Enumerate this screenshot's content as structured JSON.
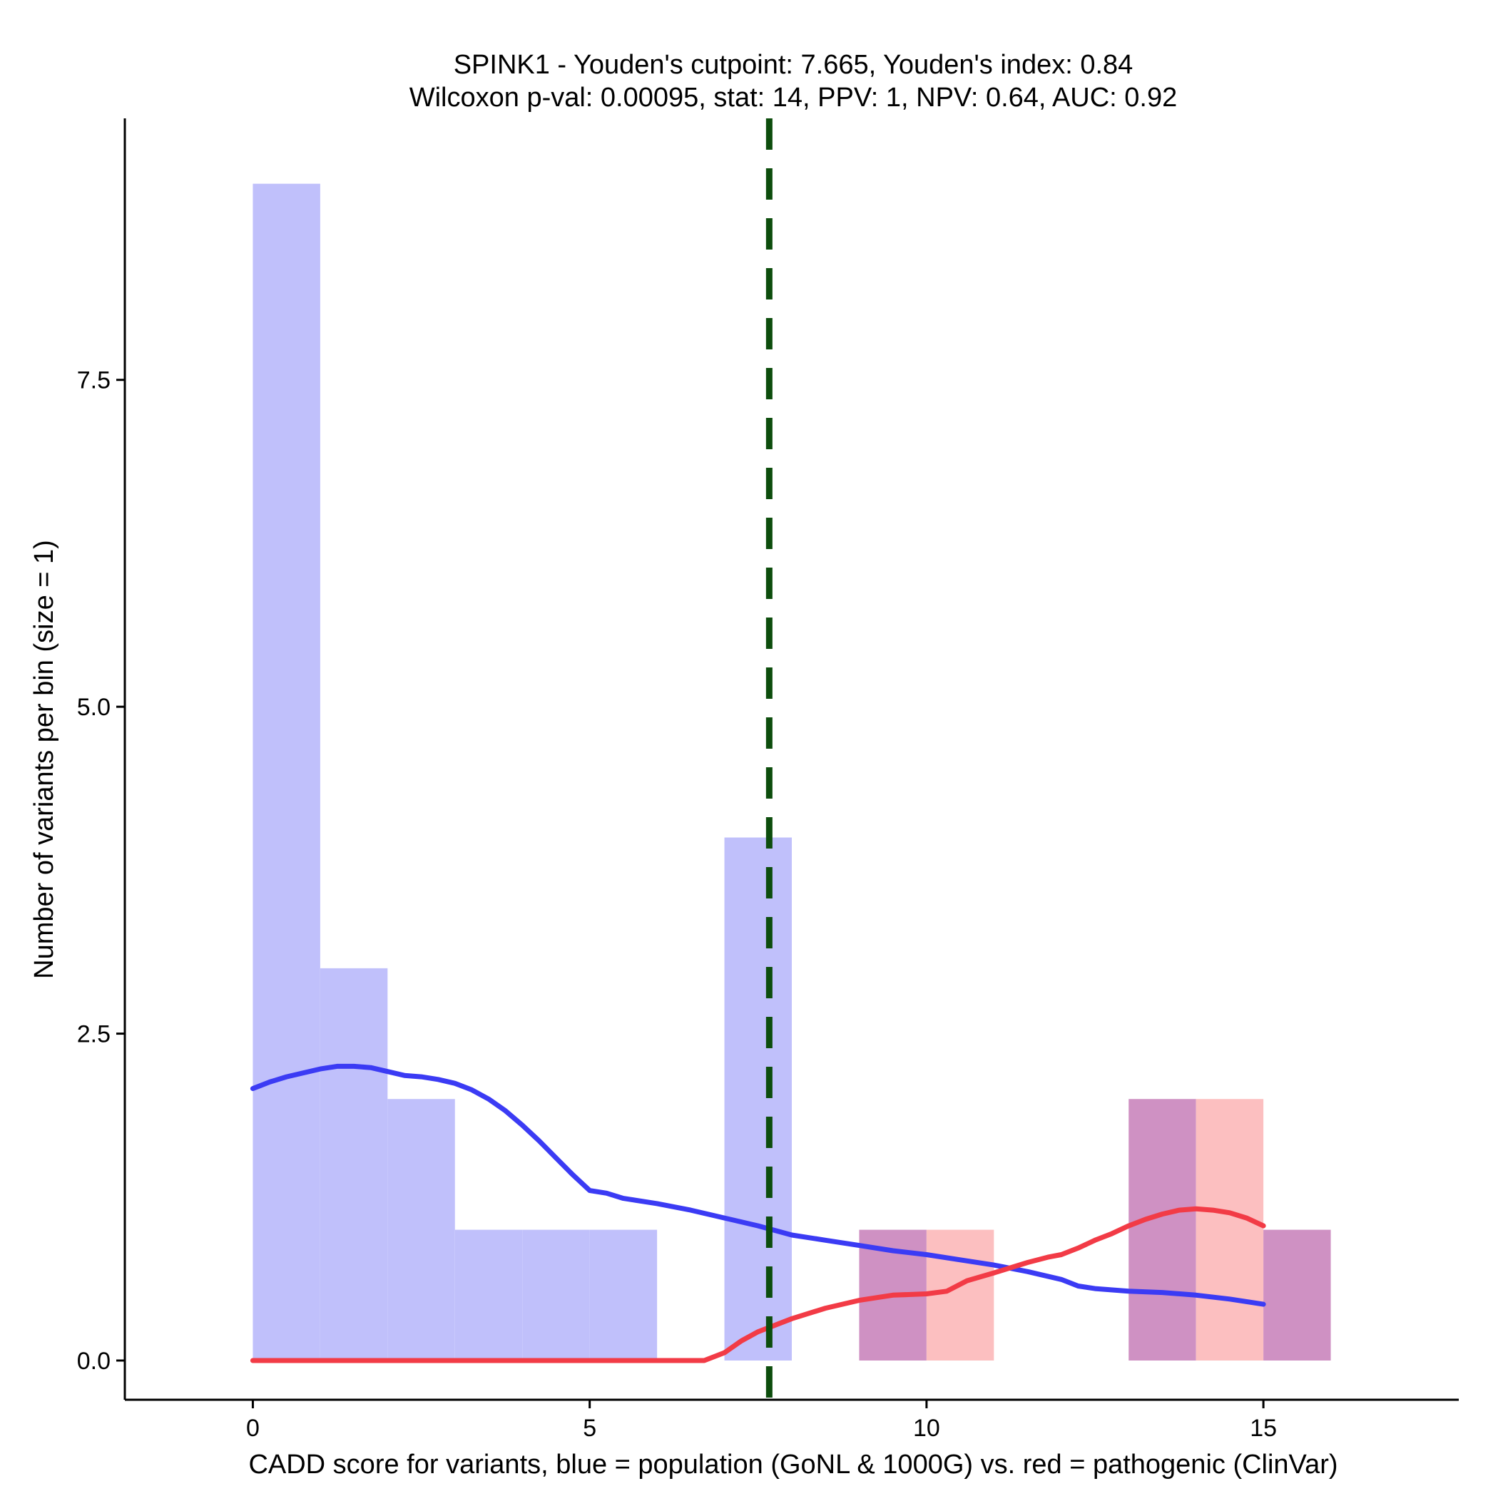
{
  "chart_data": {
    "type": "bar",
    "title_line1": "SPINK1 - Youden's cutpoint: 7.665, Youden's index: 0.84",
    "title_line2": "Wilcoxon p-val: 0.00095, stat: 14, PPV: 1, NPV: 0.64, AUC: 0.92",
    "xlabel": "CADD score for variants, blue = population (GoNL & 1000G) vs. red = pathogenic (ClinVar)",
    "ylabel": "Number of variants per bin (size = 1)",
    "xlim": [
      -1.9,
      17.9
    ],
    "ylim": [
      -0.3,
      9.5
    ],
    "x_ticks": [
      {
        "value": 0,
        "label": "0"
      },
      {
        "value": 5,
        "label": "5"
      },
      {
        "value": 10,
        "label": "10"
      },
      {
        "value": 15,
        "label": "15"
      }
    ],
    "y_ticks": [
      {
        "value": 0,
        "label": "0.0"
      },
      {
        "value": 2.5,
        "label": "2.5"
      },
      {
        "value": 5,
        "label": "5.0"
      },
      {
        "value": 7.5,
        "label": "7.5"
      }
    ],
    "bin_width": 1,
    "cutpoint": 7.665,
    "colors": {
      "population": "#c0c0fb",
      "pathogenic": "#fcbfc0",
      "overlap": "#cf91c3",
      "population_line": "#3b3bf4",
      "pathogenic_line": "#f23b46",
      "cutpoint": "#0d4d0d"
    },
    "series": [
      {
        "name": "population",
        "bins": [
          {
            "start": 0,
            "count": 9
          },
          {
            "start": 1,
            "count": 3
          },
          {
            "start": 2,
            "count": 2
          },
          {
            "start": 3,
            "count": 1
          },
          {
            "start": 4,
            "count": 1
          },
          {
            "start": 5,
            "count": 1
          },
          {
            "start": 7,
            "count": 4
          },
          {
            "start": 9,
            "count": 1
          },
          {
            "start": 13,
            "count": 2
          },
          {
            "start": 15,
            "count": 1
          }
        ],
        "density": [
          [
            0,
            2.08
          ],
          [
            0.25,
            2.13
          ],
          [
            0.5,
            2.17
          ],
          [
            0.75,
            2.2
          ],
          [
            1.0,
            2.23
          ],
          [
            1.25,
            2.25
          ],
          [
            1.5,
            2.25
          ],
          [
            1.75,
            2.24
          ],
          [
            2.0,
            2.21
          ],
          [
            2.25,
            2.18
          ],
          [
            2.5,
            2.17
          ],
          [
            2.75,
            2.15
          ],
          [
            3.0,
            2.12
          ],
          [
            3.25,
            2.07
          ],
          [
            3.5,
            2.0
          ],
          [
            3.75,
            1.91
          ],
          [
            4.0,
            1.8
          ],
          [
            4.25,
            1.68
          ],
          [
            4.5,
            1.55
          ],
          [
            4.75,
            1.42
          ],
          [
            5.0,
            1.3
          ],
          [
            5.25,
            1.28
          ],
          [
            5.5,
            1.24
          ],
          [
            6.0,
            1.2
          ],
          [
            6.5,
            1.15
          ],
          [
            7.0,
            1.09
          ],
          [
            7.5,
            1.03
          ],
          [
            8.0,
            0.96
          ],
          [
            8.5,
            0.92
          ],
          [
            9.0,
            0.88
          ],
          [
            9.5,
            0.84
          ],
          [
            10.0,
            0.81
          ],
          [
            10.5,
            0.77
          ],
          [
            11.0,
            0.73
          ],
          [
            11.5,
            0.68
          ],
          [
            12.0,
            0.62
          ],
          [
            12.25,
            0.57
          ],
          [
            12.5,
            0.55
          ],
          [
            13.0,
            0.53
          ],
          [
            13.5,
            0.52
          ],
          [
            14.0,
            0.5
          ],
          [
            14.5,
            0.47
          ],
          [
            15.0,
            0.43
          ]
        ]
      },
      {
        "name": "pathogenic",
        "bins": [
          {
            "start": 9,
            "count": 1
          },
          {
            "start": 10,
            "count": 1
          },
          {
            "start": 13,
            "count": 2
          },
          {
            "start": 14,
            "count": 2
          },
          {
            "start": 15,
            "count": 1
          }
        ],
        "density": [
          [
            0,
            0
          ],
          [
            3,
            0
          ],
          [
            6.0,
            0
          ],
          [
            6.7,
            0
          ],
          [
            7.0,
            0.06
          ],
          [
            7.25,
            0.15
          ],
          [
            7.5,
            0.22
          ],
          [
            8.0,
            0.32
          ],
          [
            8.5,
            0.4
          ],
          [
            9.0,
            0.46
          ],
          [
            9.5,
            0.5
          ],
          [
            10.0,
            0.51
          ],
          [
            10.3,
            0.53
          ],
          [
            10.6,
            0.61
          ],
          [
            11.0,
            0.67
          ],
          [
            11.5,
            0.75
          ],
          [
            11.8,
            0.79
          ],
          [
            12.0,
            0.81
          ],
          [
            12.25,
            0.86
          ],
          [
            12.5,
            0.92
          ],
          [
            12.75,
            0.97
          ],
          [
            13.0,
            1.03
          ],
          [
            13.25,
            1.08
          ],
          [
            13.5,
            1.12
          ],
          [
            13.75,
            1.15
          ],
          [
            14.0,
            1.16
          ],
          [
            14.25,
            1.15
          ],
          [
            14.5,
            1.13
          ],
          [
            14.75,
            1.09
          ],
          [
            15.0,
            1.03
          ]
        ]
      }
    ]
  }
}
